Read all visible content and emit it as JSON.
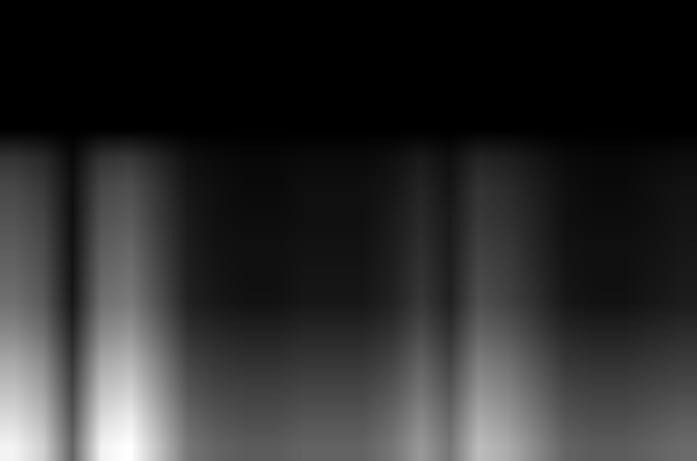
{
  "chart_data": {
    "type": "heatmap",
    "tick_labels": false,
    "color": "gray",
    "grid": false,
    "value_range": [
      0,
      1
    ],
    "cells": [
      [
        0,
        0,
        0,
        0,
        0,
        0,
        0,
        0,
        0,
        0,
        0,
        0,
        0,
        0,
        0,
        0,
        0,
        0,
        0,
        0,
        0,
        0,
        0,
        0
      ],
      [
        0,
        0,
        0,
        0,
        0,
        0,
        0,
        0,
        0,
        0,
        0,
        0,
        0,
        0,
        0,
        0,
        0,
        0,
        0,
        0,
        0,
        0,
        0,
        0
      ],
      [
        0,
        0,
        0,
        0,
        0,
        0,
        0,
        0,
        0,
        0,
        0,
        0,
        0,
        0,
        0,
        0,
        0,
        0,
        0,
        0,
        0,
        0,
        0,
        0
      ],
      [
        0,
        0,
        0,
        0,
        0,
        0,
        0,
        0,
        0,
        0,
        0,
        0,
        0,
        0,
        0,
        0,
        0,
        0,
        0,
        0,
        0,
        0,
        0,
        0
      ],
      [
        0,
        0,
        0,
        0,
        0,
        0,
        0,
        0,
        0,
        0,
        0,
        0,
        0,
        0,
        0,
        0,
        0,
        0,
        0,
        0,
        0,
        0,
        0,
        0
      ],
      [
        0.2,
        0.16,
        0.04,
        0.2,
        0.22,
        0.14,
        0.06,
        0.04,
        0.03,
        0.03,
        0.04,
        0.04,
        0.04,
        0.06,
        0.1,
        0.06,
        0.14,
        0.12,
        0.08,
        0.04,
        0.03,
        0.03,
        0.04,
        0.05
      ],
      [
        0.28,
        0.22,
        0.06,
        0.28,
        0.31,
        0.2,
        0.08,
        0.06,
        0.04,
        0.04,
        0.06,
        0.06,
        0.06,
        0.08,
        0.14,
        0.08,
        0.2,
        0.17,
        0.11,
        0.06,
        0.04,
        0.04,
        0.06,
        0.07
      ],
      [
        0.32,
        0.26,
        0.06,
        0.32,
        0.35,
        0.22,
        0.1,
        0.06,
        0.05,
        0.05,
        0.06,
        0.06,
        0.06,
        0.1,
        0.16,
        0.1,
        0.22,
        0.19,
        0.13,
        0.06,
        0.05,
        0.05,
        0.06,
        0.08
      ],
      [
        0.36,
        0.29,
        0.07,
        0.36,
        0.4,
        0.25,
        0.11,
        0.07,
        0.06,
        0.06,
        0.07,
        0.07,
        0.07,
        0.11,
        0.18,
        0.11,
        0.25,
        0.22,
        0.14,
        0.07,
        0.06,
        0.06,
        0.07,
        0.09
      ],
      [
        0.4,
        0.32,
        0.08,
        0.4,
        0.44,
        0.28,
        0.12,
        0.08,
        0.06,
        0.06,
        0.08,
        0.08,
        0.08,
        0.12,
        0.2,
        0.12,
        0.28,
        0.24,
        0.16,
        0.08,
        0.06,
        0.06,
        0.08,
        0.1
      ],
      [
        0.44,
        0.35,
        0.09,
        0.44,
        0.48,
        0.31,
        0.13,
        0.09,
        0.07,
        0.07,
        0.09,
        0.09,
        0.09,
        0.13,
        0.22,
        0.13,
        0.31,
        0.26,
        0.18,
        0.09,
        0.07,
        0.07,
        0.09,
        0.11
      ],
      [
        0.53,
        0.43,
        0.15,
        0.53,
        0.58,
        0.39,
        0.19,
        0.15,
        0.13,
        0.13,
        0.15,
        0.15,
        0.15,
        0.19,
        0.29,
        0.19,
        0.39,
        0.34,
        0.24,
        0.15,
        0.13,
        0.13,
        0.15,
        0.17
      ],
      [
        0.65,
        0.54,
        0.21,
        0.65,
        0.7,
        0.49,
        0.26,
        0.21,
        0.19,
        0.19,
        0.21,
        0.21,
        0.21,
        0.26,
        0.38,
        0.26,
        0.49,
        0.43,
        0.32,
        0.21,
        0.19,
        0.19,
        0.21,
        0.23
      ],
      [
        0.75,
        0.63,
        0.27,
        0.75,
        0.81,
        0.57,
        0.33,
        0.27,
        0.25,
        0.25,
        0.27,
        0.27,
        0.27,
        0.33,
        0.45,
        0.33,
        0.57,
        0.51,
        0.39,
        0.27,
        0.25,
        0.25,
        0.27,
        0.29
      ],
      [
        0.85,
        0.72,
        0.33,
        0.85,
        0.92,
        0.66,
        0.4,
        0.33,
        0.3,
        0.3,
        0.33,
        0.33,
        0.33,
        0.4,
        0.53,
        0.4,
        0.66,
        0.59,
        0.46,
        0.33,
        0.3,
        0.3,
        0.33,
        0.36
      ],
      [
        0.95,
        0.81,
        0.39,
        0.95,
        1.0,
        0.74,
        0.46,
        0.39,
        0.36,
        0.36,
        0.39,
        0.39,
        0.39,
        0.46,
        0.6,
        0.46,
        0.74,
        0.67,
        0.53,
        0.39,
        0.36,
        0.36,
        0.39,
        0.42
      ]
    ]
  }
}
